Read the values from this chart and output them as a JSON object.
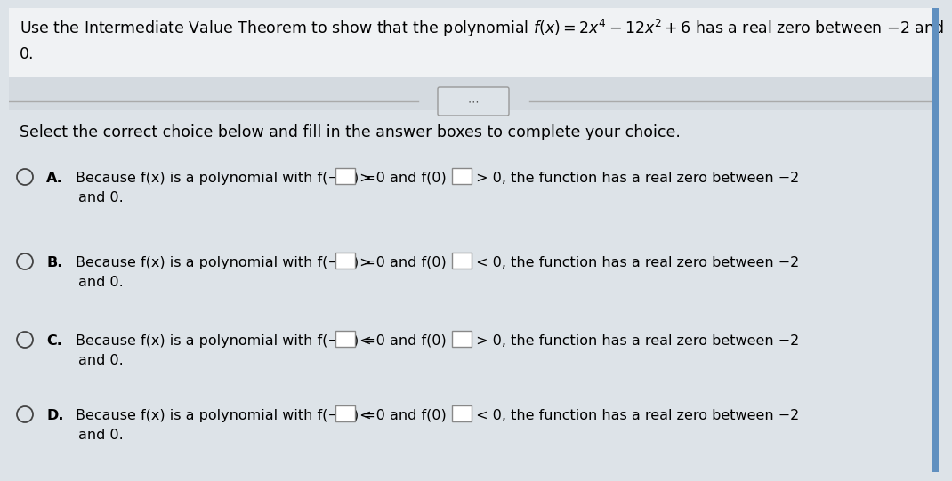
{
  "bg_top": "#c8d0d8",
  "bg_bottom": "#c0cad4",
  "content_bg": "#dde3e8",
  "title_line1": "Use the Intermediate Value Theorem to show that the polynomial f(x) = 2x⁴ − 12x² + 6 has a real zero between −2 and",
  "title_line2": "0.",
  "select_text": "Select the correct choice below and fill in the answer boxes to complete your choice.",
  "choices": [
    {
      "label": "A.",
      "seg1": "Because f(x) is a polynomial with f(− 2) = ",
      "ineq1": " > 0 and f(0) = ",
      "ineq2": " > 0, the function has a real zero between −2",
      "line2": "and 0."
    },
    {
      "label": "B.",
      "seg1": "Because f(x) is a polynomial with f(− 2) = ",
      "ineq1": " > 0 and f(0) = ",
      "ineq2": " < 0, the function has a real zero between −2",
      "line2": "and 0."
    },
    {
      "label": "C.",
      "seg1": "Because f(x) is a polynomial with f(− 2) = ",
      "ineq1": " < 0 and f(0) = ",
      "ineq2": " > 0, the function has a real zero between −2",
      "line2": "and 0."
    },
    {
      "label": "D.",
      "seg1": "Because f(x) is a polynomial with f(− 2) = ",
      "ineq1": " < 0 and f(0) = ",
      "ineq2": " < 0, the function has a real zero between −2",
      "line2": "and 0."
    }
  ]
}
